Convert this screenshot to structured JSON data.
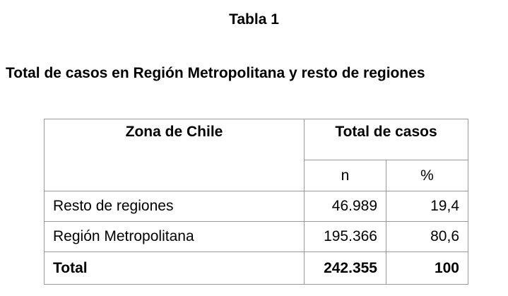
{
  "header": {
    "title": "Tabla 1",
    "subtitle": "Total de casos en Región Metropolitana y resto de regiones"
  },
  "table": {
    "columns": {
      "zone": "Zona de Chile",
      "total": "Total de casos",
      "n": "n",
      "percent": "%"
    },
    "rows": [
      [
        "Resto de regiones",
        "46.989",
        "19,4"
      ],
      [
        "Región Metropolitana",
        "195.366",
        "80,6"
      ]
    ],
    "total": [
      "Total",
      "242.355",
      "100"
    ]
  }
}
